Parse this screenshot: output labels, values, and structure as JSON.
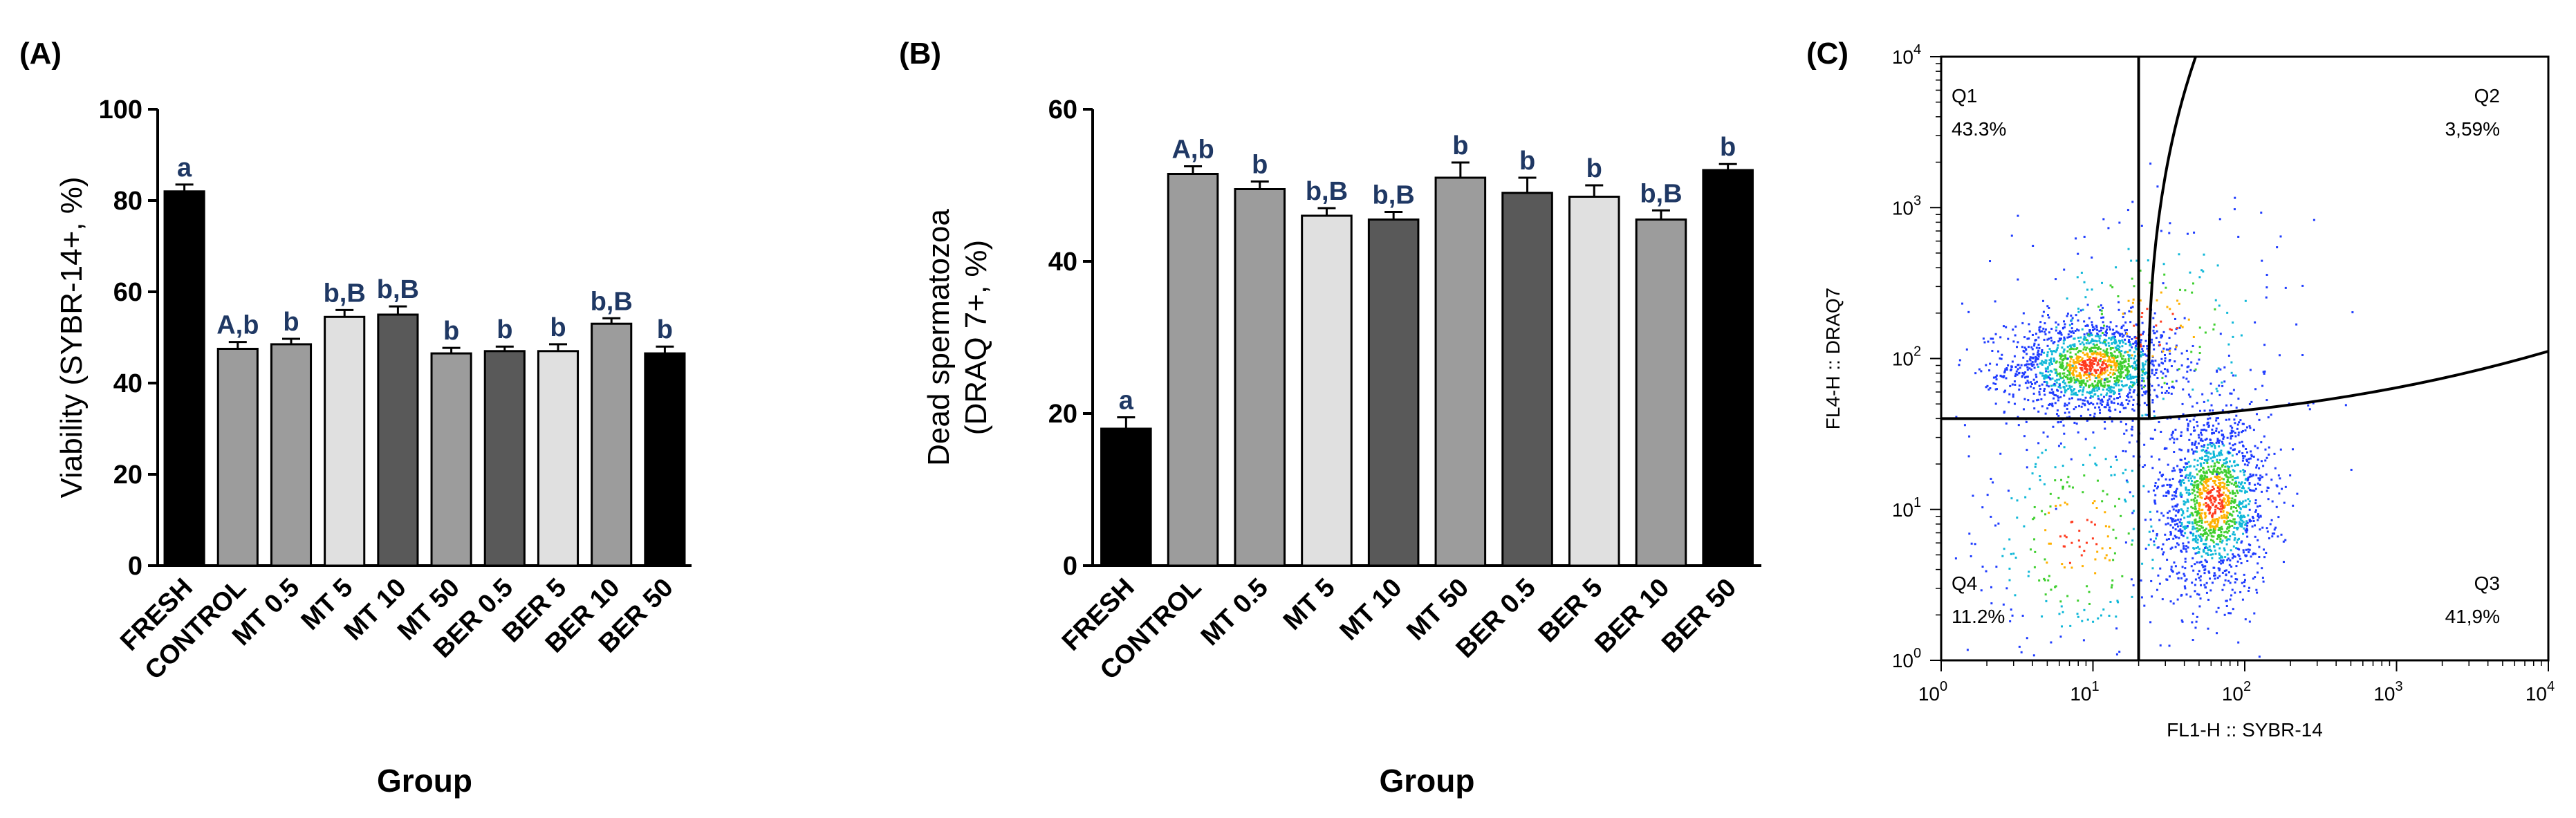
{
  "chart_data": [
    {
      "type": "bar",
      "panel_label": "(A)",
      "ylabel": "Viability (SYBR-14+, %)",
      "xlabel": "Group",
      "ylim": [
        0,
        100
      ],
      "yticks": [
        0,
        20,
        40,
        60,
        80,
        100
      ],
      "categories": [
        "FRESH",
        "CONTROL",
        "MT 0.5",
        "MT 5",
        "MT 10",
        "MT 50",
        "BER 0.5",
        "BER 5",
        "BER 10",
        "BER 50"
      ],
      "values": [
        82,
        47.5,
        48.5,
        54.5,
        55,
        46.5,
        47,
        47,
        53,
        46.5
      ],
      "errors": [
        1.5,
        1.5,
        1.2,
        1.5,
        1.8,
        1.2,
        1,
        1.5,
        1.2,
        1.5
      ],
      "labels": [
        "a",
        "A,b",
        "b",
        "b,B",
        "b,B",
        "b",
        "b",
        "b",
        "b,B",
        "b"
      ],
      "colors": [
        "#000000",
        "#9c9c9c",
        "#9c9c9c",
        "#e0e0e0",
        "#595959",
        "#9c9c9c",
        "#595959",
        "#e0e0e0",
        "#9c9c9c",
        "#000000"
      ]
    },
    {
      "type": "bar",
      "panel_label": "(B)",
      "ylabel_line1": "Dead spermatozoa",
      "ylabel_line2": "(DRAQ 7+, %)",
      "xlabel": "Group",
      "ylim": [
        0,
        60
      ],
      "yticks": [
        0,
        20,
        40,
        60
      ],
      "categories": [
        "FRESH",
        "CONTROL",
        "MT 0.5",
        "MT 5",
        "MT 10",
        "MT 50",
        "BER 0.5",
        "BER 5",
        "BER 10",
        "BER 50"
      ],
      "values": [
        18,
        51.5,
        49.5,
        46,
        45.5,
        51,
        49,
        48.5,
        45.5,
        52
      ],
      "errors": [
        1.5,
        1,
        1,
        1,
        1,
        2,
        2,
        1.5,
        1.2,
        0.8
      ],
      "labels": [
        "a",
        "A,b",
        "b",
        "b,B",
        "b,B",
        "b",
        "b",
        "b",
        "b,B",
        "b"
      ],
      "colors": [
        "#000000",
        "#9c9c9c",
        "#9c9c9c",
        "#e0e0e0",
        "#595959",
        "#9c9c9c",
        "#595959",
        "#e0e0e0",
        "#9c9c9c",
        "#000000"
      ]
    },
    {
      "type": "scatter",
      "panel_label": "(C)",
      "xlabel": "FL1-H :: SYBR-14",
      "ylabel": "FL4-H :: DRAQ7",
      "x_scale": "log",
      "y_scale": "log",
      "xlim": [
        1,
        10000
      ],
      "ylim": [
        1,
        10000
      ],
      "tick_exponents": [
        0,
        1,
        2,
        3,
        4
      ],
      "gate_x": 20,
      "gate_y": 40,
      "quadrants": [
        {
          "name": "Q1",
          "percent": "43.3%"
        },
        {
          "name": "Q2",
          "percent": "3,59%"
        },
        {
          "name": "Q3",
          "percent": "41,9%"
        },
        {
          "name": "Q4",
          "percent": "11.2%"
        }
      ]
    }
  ]
}
